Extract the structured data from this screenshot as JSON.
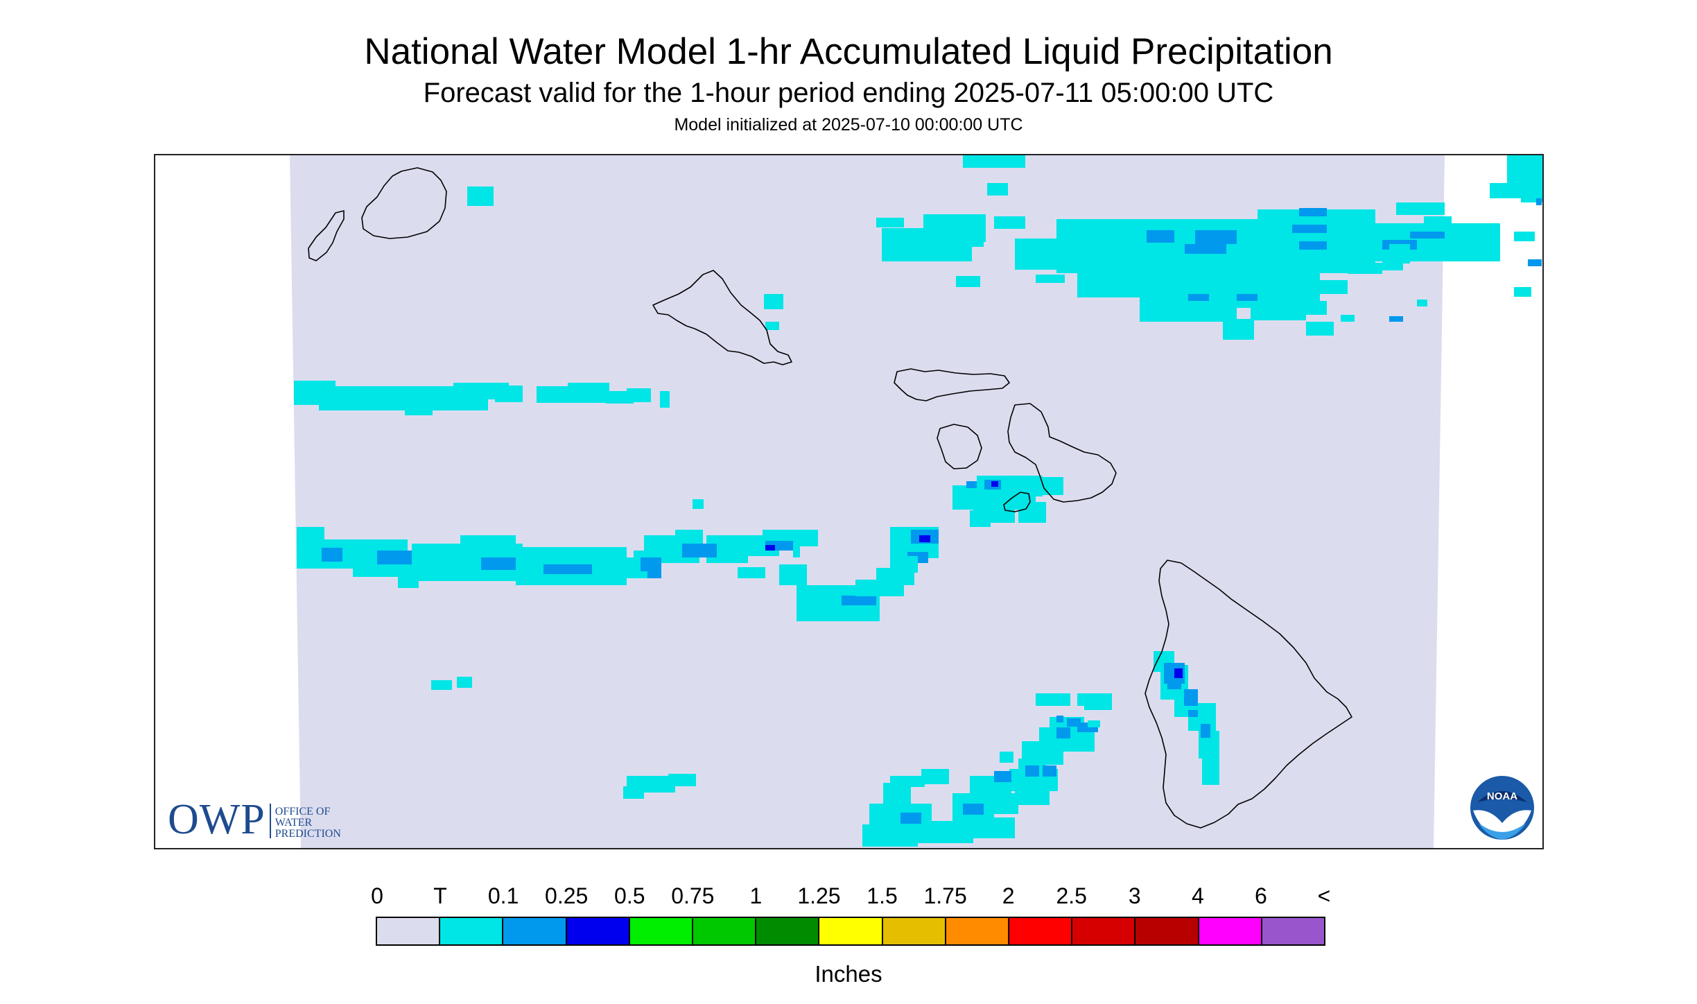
{
  "title": "National Water Model 1-hr Accumulated Liquid Precipitation",
  "subtitle": "Forecast valid for the 1-hour period ending 2025-07-11 05:00:00 UTC",
  "init_line": "Model initialized at 2025-07-10 00:00:00 UTC",
  "logos": {
    "owp_letters": "OWP",
    "owp_office": "OFFICE OF\nWATER\nPREDICTION",
    "noaa": "NOAA"
  },
  "legend": {
    "units": "Inches",
    "labels": [
      "0",
      "T",
      "0.1",
      "0.25",
      "0.5",
      "0.75",
      "1",
      "1.25",
      "1.5",
      "1.75",
      "2",
      "2.5",
      "3",
      "4",
      "6",
      "<"
    ],
    "colors": [
      "#dcdcef",
      "#00e5e5",
      "#0099ee",
      "#0000ee",
      "#00ee00",
      "#00c800",
      "#008c00",
      "#ffff00",
      "#e5be00",
      "#ff8c00",
      "#ff0000",
      "#d60000",
      "#b80000",
      "#ff00ff",
      "#9955cc"
    ]
  },
  "map": {
    "background_color": "#dcdcef",
    "coastline_color": "#000000",
    "islands": [
      "Kauai",
      "Niihau",
      "Oahu",
      "Molokai",
      "Lanai",
      "Maui",
      "Kahoolawe",
      "Hawaii"
    ]
  }
}
